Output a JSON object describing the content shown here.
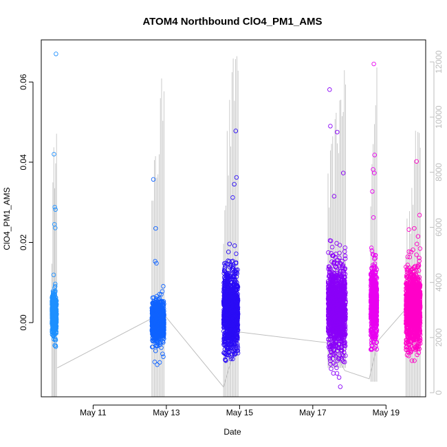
{
  "chart_data": {
    "type": "scatter",
    "title": "ATOM4 Northbound ClO4_PM1_AMS",
    "xlabel": "Date",
    "ylabel": "ClO4_PM1_AMS",
    "x_axis": {
      "type": "date",
      "range": [
        "2016-05-09T14:00",
        "2016-05-20T02:00"
      ],
      "ticks": [
        {
          "date": "2016-05-11",
          "label": "May 11"
        },
        {
          "date": "2016-05-13",
          "label": "May 13"
        },
        {
          "date": "2016-05-15",
          "label": "May 15"
        },
        {
          "date": "2016-05-17",
          "label": "May 17"
        },
        {
          "date": "2016-05-19",
          "label": "May 19"
        }
      ]
    },
    "y_axis": {
      "range": [
        -0.0185,
        0.0705
      ],
      "ticks": [
        0.0,
        0.02,
        0.04,
        0.06
      ],
      "tick_labels": [
        "0.00",
        "0.02",
        "0.04",
        "0.06"
      ]
    },
    "y2_axis": {
      "position": "right",
      "color": "#bdbdbd",
      "range": [
        -150,
        12800
      ],
      "ticks": [
        0,
        2000,
        4000,
        6000,
        8000,
        10000,
        12000
      ],
      "tick_labels": [
        "0",
        "2000",
        "4000",
        "6000",
        "8000",
        "10000",
        "12000"
      ]
    },
    "grid": false,
    "legend": "none",
    "clusters": [
      {
        "start": "2016-05-09T21:00",
        "end": "2016-05-10T00:00",
        "color": "#1e90ff",
        "center": 0.002,
        "sd": 0.0028,
        "y_min": -0.006,
        "y_max": 0.067,
        "outliers": [
          {
            "t": "2016-05-09T23:40",
            "v": 0.067
          },
          {
            "t": "2016-05-09T22:20",
            "v": 0.042
          },
          {
            "t": "2016-05-09T22:50",
            "v": 0.0288
          },
          {
            "t": "2016-05-09T23:20",
            "v": 0.0282
          },
          {
            "t": "2016-05-09T22:40",
            "v": 0.0245
          },
          {
            "t": "2016-05-09T23:10",
            "v": 0.0236
          },
          {
            "t": "2016-05-09T23:30",
            "v": -0.006
          }
        ],
        "line": {
          "max": 10600,
          "low": -150
        }
      },
      {
        "start": "2016-05-12T14:30",
        "end": "2016-05-12T22:30",
        "color": "#0f63ff",
        "center": 0.0003,
        "sd": 0.0025,
        "y_min": -0.0105,
        "y_max": 0.0357,
        "outliers": [
          {
            "t": "2016-05-12T15:30",
            "v": 0.0357
          },
          {
            "t": "2016-05-12T17:00",
            "v": 0.0235
          },
          {
            "t": "2016-05-12T16:40",
            "v": 0.0153
          },
          {
            "t": "2016-05-12T17:30",
            "v": 0.0148
          },
          {
            "t": "2016-05-12T18:00",
            "v": -0.0105
          },
          {
            "t": "2016-05-12T22:00",
            "v": -0.0085
          },
          {
            "t": "2016-05-12T21:30",
            "v": -0.0078
          },
          {
            "t": "2016-05-12T16:20",
            "v": -0.0098
          }
        ],
        "line": {
          "max": 11400,
          "low": -150
        }
      },
      {
        "start": "2016-05-14T13:30",
        "end": "2016-05-14T23:00",
        "color": "#2a0cf5",
        "center": 0.003,
        "sd": 0.0052,
        "y_min": -0.0095,
        "y_max": 0.048,
        "outliers": [
          {
            "t": "2016-05-14T21:30",
            "v": 0.0478
          },
          {
            "t": "2016-05-14T22:00",
            "v": 0.0362
          },
          {
            "t": "2016-05-14T20:30",
            "v": 0.0345
          },
          {
            "t": "2016-05-14T19:30",
            "v": 0.0312
          },
          {
            "t": "2016-05-14T15:00",
            "v": -0.0095
          },
          {
            "t": "2016-05-14T17:00",
            "v": -0.0075
          }
        ],
        "line": {
          "max": 12650,
          "low": -150
        }
      },
      {
        "start": "2016-05-17T10:00",
        "end": "2016-05-17T21:30",
        "color": "#8a00f8",
        "center": 0.0035,
        "sd": 0.0052,
        "y_min": -0.016,
        "y_max": 0.058,
        "outliers": [
          {
            "t": "2016-05-17T11:00",
            "v": 0.0581
          },
          {
            "t": "2016-05-17T11:30",
            "v": 0.049
          },
          {
            "t": "2016-05-17T16:00",
            "v": 0.0475
          },
          {
            "t": "2016-05-17T20:00",
            "v": 0.0373
          },
          {
            "t": "2016-05-17T14:00",
            "v": 0.0315
          },
          {
            "t": "2016-05-17T12:00",
            "v": -0.0115
          },
          {
            "t": "2016-05-17T18:00",
            "v": -0.016
          }
        ],
        "line": {
          "max": 11700,
          "low": 900
        }
      },
      {
        "start": "2016-05-18T14:00",
        "end": "2016-05-18T18:00",
        "color": "#e800f0",
        "center": 0.0045,
        "sd": 0.0048,
        "y_min": -0.007,
        "y_max": 0.0645,
        "outliers": [
          {
            "t": "2016-05-18T16:00",
            "v": 0.0645
          },
          {
            "t": "2016-05-18T16:30",
            "v": 0.0418
          },
          {
            "t": "2016-05-18T15:30",
            "v": 0.0382
          },
          {
            "t": "2016-05-18T16:20",
            "v": 0.0373
          },
          {
            "t": "2016-05-18T15:00",
            "v": 0.0327
          },
          {
            "t": "2016-05-18T15:45",
            "v": 0.0262
          },
          {
            "t": "2016-05-18T14:30",
            "v": -0.0065
          }
        ],
        "line": {
          "max": 11800,
          "low": 400
        }
      },
      {
        "start": "2016-05-19T13:00",
        "end": "2016-05-19T22:30",
        "color": "#ff00c8",
        "center": 0.0035,
        "sd": 0.005,
        "y_min": -0.0095,
        "y_max": 0.0402,
        "outliers": [
          {
            "t": "2016-05-19T20:00",
            "v": 0.0402
          },
          {
            "t": "2016-05-19T22:00",
            "v": 0.0268
          },
          {
            "t": "2016-05-19T18:30",
            "v": 0.0235
          },
          {
            "t": "2016-05-19T21:00",
            "v": 0.0215
          },
          {
            "t": "2016-05-19T15:00",
            "v": 0.0232
          },
          {
            "t": "2016-05-19T17:00",
            "v": -0.0095
          }
        ],
        "line": {
          "max": 9900,
          "low": -150
        }
      }
    ],
    "secondary_line": {
      "color": "#bdbdbd",
      "connectors": [
        {
          "t": "2016-05-10T00:30",
          "v": 900
        },
        {
          "t": "2016-05-12T21:30",
          "v": 2900
        },
        {
          "t": "2016-05-14T13:30",
          "v": 200
        },
        {
          "t": "2016-05-14T23:40",
          "v": 2200
        },
        {
          "t": "2016-05-17T11:00",
          "v": 1800
        },
        {
          "t": "2016-05-17T21:00",
          "v": 800
        },
        {
          "t": "2016-05-18T13:00",
          "v": 500
        },
        {
          "t": "2016-05-18T19:00",
          "v": 1900
        },
        {
          "t": "2016-05-19T14:00",
          "v": 3100
        }
      ]
    }
  }
}
